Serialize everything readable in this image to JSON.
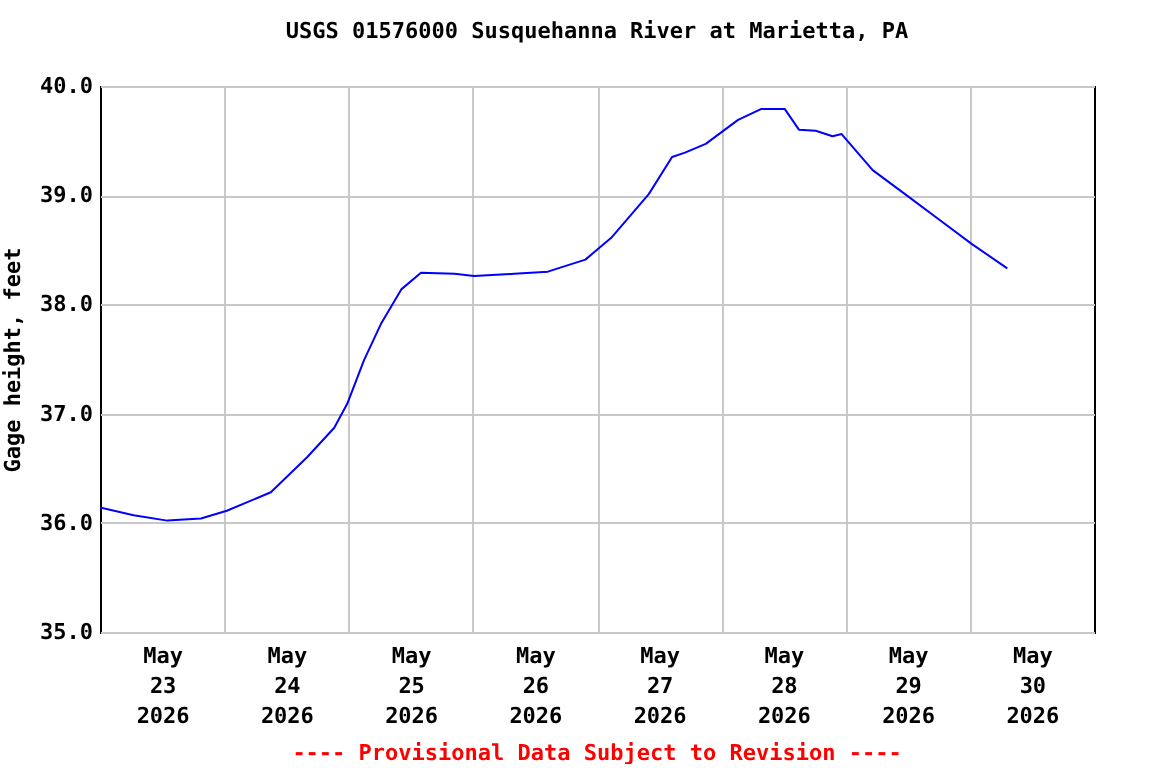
{
  "chart_data": {
    "type": "line",
    "title": "USGS 01576000 Susquehanna River at Marietta, PA",
    "ylabel": "Gage height, feet",
    "annotations": [
      "---- Provisional Data Subject to Revision ----"
    ],
    "x": [
      "2026-05-23T00:00",
      "2026-05-23T06:30",
      "2026-05-23T13:00",
      "2026-05-23T19:30",
      "2026-05-24T00:30",
      "2026-05-24T09:00",
      "2026-05-24T16:00",
      "2026-05-24T21:15",
      "2026-05-24T23:45",
      "2026-05-25T03:00",
      "2026-05-25T06:15",
      "2026-05-25T10:15",
      "2026-05-25T14:00",
      "2026-05-25T20:30",
      "2026-05-26T00:15",
      "2026-05-26T08:00",
      "2026-05-26T14:30",
      "2026-05-26T21:45",
      "2026-05-27T02:45",
      "2026-05-27T10:00",
      "2026-05-27T14:30",
      "2026-05-27T17:00",
      "2026-05-27T21:00",
      "2026-05-28T03:15",
      "2026-05-28T07:45",
      "2026-05-28T12:15",
      "2026-05-28T15:00",
      "2026-05-28T18:15",
      "2026-05-28T21:30",
      "2026-05-28T23:15",
      "2026-05-29T05:15",
      "2026-05-29T11:30",
      "2026-05-29T18:00",
      "2026-05-30T00:30",
      "2026-05-30T07:15"
    ],
    "series": [
      {
        "color": "#0000ff",
        "values": [
          36.14,
          36.07,
          36.02,
          36.04,
          36.11,
          36.28,
          36.6,
          36.87,
          37.09,
          37.49,
          37.82,
          38.14,
          38.29,
          38.28,
          38.26,
          38.28,
          38.3,
          38.41,
          38.61,
          39.01,
          39.35,
          39.39,
          39.47,
          39.69,
          39.79,
          39.79,
          39.6,
          39.59,
          39.54,
          39.56,
          39.23,
          39.01,
          38.78,
          38.55,
          38.33
        ]
      }
    ],
    "xlim": [
      "2026-05-23T00:00",
      "2026-05-31T00:00"
    ],
    "xticks": [
      {
        "value": "2026-05-23T12:00",
        "label": "May\n23\n2026"
      },
      {
        "value": "2026-05-24T00:00",
        "label": null
      },
      {
        "value": "2026-05-24T12:00",
        "label": "May\n24\n2026"
      },
      {
        "value": "2026-05-25T00:00",
        "label": null
      },
      {
        "value": "2026-05-25T12:00",
        "label": "May\n25\n2026"
      },
      {
        "value": "2026-05-26T00:00",
        "label": null
      },
      {
        "value": "2026-05-26T12:00",
        "label": "May\n26\n2026"
      },
      {
        "value": "2026-05-27T00:00",
        "label": null
      },
      {
        "value": "2026-05-27T12:00",
        "label": "May\n27\n2026"
      },
      {
        "value": "2026-05-28T00:00",
        "label": null
      },
      {
        "value": "2026-05-28T12:00",
        "label": "May\n28\n2026"
      },
      {
        "value": "2026-05-29T00:00",
        "label": null
      },
      {
        "value": "2026-05-29T12:00",
        "label": "May\n29\n2026"
      },
      {
        "value": "2026-05-30T00:00",
        "label": null
      },
      {
        "value": "2026-05-30T12:00",
        "label": "May\n30\n2026"
      }
    ],
    "ylim": [
      35,
      40
    ],
    "yticks": [
      {
        "value": 35,
        "label": "35.0"
      },
      {
        "value": 36,
        "label": "36.0"
      },
      {
        "value": 37,
        "label": "37.0"
      },
      {
        "value": 38,
        "label": "38.0"
      },
      {
        "value": 39,
        "label": "39.0"
      },
      {
        "value": 40,
        "label": "40.0"
      }
    ],
    "grid": true,
    "marker": "none",
    "line_style": "solid"
  }
}
